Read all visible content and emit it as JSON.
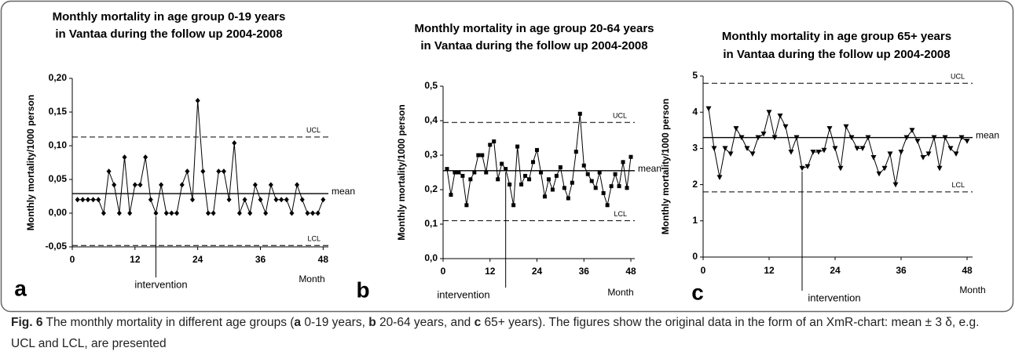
{
  "chart_data": [
    {
      "type": "line",
      "panel": "a",
      "title": [
        "Monthly mortality in age group 0-19 years",
        "in Vantaa during the follow up 2004-2008"
      ],
      "y_label": "Monthly mortality/1000 person",
      "x_label": "Month",
      "x": [
        1,
        2,
        3,
        4,
        5,
        6,
        7,
        8,
        9,
        10,
        11,
        12,
        13,
        14,
        15,
        16,
        17,
        18,
        19,
        20,
        21,
        22,
        23,
        24,
        25,
        26,
        27,
        28,
        29,
        30,
        31,
        32,
        33,
        34,
        35,
        36,
        37,
        38,
        39,
        40,
        41,
        42,
        43,
        44,
        45,
        46,
        47,
        48
      ],
      "values": [
        0.02,
        0.02,
        0.02,
        0.02,
        0.02,
        0,
        0.062,
        0.042,
        0,
        0.083,
        0,
        0.042,
        0.042,
        0.083,
        0.02,
        0,
        0.042,
        0,
        0,
        0,
        0.042,
        0.062,
        0.02,
        0.167,
        0.062,
        0,
        0,
        0.062,
        0.062,
        0.02,
        0.104,
        0,
        0.02,
        0,
        0.042,
        0.02,
        0,
        0.042,
        0.02,
        0.02,
        0.02,
        0,
        0.042,
        0.02,
        0,
        0,
        0,
        0.02
      ],
      "color": "#000000",
      "marker": "diamond",
      "xlim": [
        0,
        49
      ],
      "xticks": [
        0,
        12,
        24,
        36,
        48
      ],
      "ylim": [
        -0.05,
        0.2
      ],
      "yticks": [
        {
          "value": -0.05,
          "label": "-0,05"
        },
        {
          "value": 0,
          "label": "0,00"
        },
        {
          "value": 0.05,
          "label": "0,05"
        },
        {
          "value": 0.1,
          "label": "0,10"
        },
        {
          "value": 0.15,
          "label": "0,15"
        },
        {
          "value": 0.2,
          "label": "0,20"
        }
      ],
      "ref_lines": [
        {
          "label": "UCL",
          "value": 0.113,
          "style": "dashed"
        },
        {
          "label": "mean",
          "value": 0.029,
          "style": "solid"
        },
        {
          "label": "LCL",
          "value": -0.048,
          "style": "dashed"
        }
      ],
      "annotation": {
        "text": "intervention",
        "x": 16
      }
    },
    {
      "type": "line",
      "panel": "b",
      "title": [
        "Monthly mortality in age group 20-64 years",
        "in Vantaa during the follow up 2004-2008"
      ],
      "y_label": "Monthly mortality/1000 person",
      "x_label": "Month",
      "x": [
        1,
        2,
        3,
        4,
        5,
        6,
        7,
        8,
        9,
        10,
        11,
        12,
        13,
        14,
        15,
        16,
        17,
        18,
        19,
        20,
        21,
        22,
        23,
        24,
        25,
        26,
        27,
        28,
        29,
        30,
        31,
        32,
        33,
        34,
        35,
        36,
        37,
        38,
        39,
        40,
        41,
        42,
        43,
        44,
        45,
        46,
        47,
        48
      ],
      "values": [
        0.26,
        0.185,
        0.25,
        0.25,
        0.24,
        0.155,
        0.23,
        0.25,
        0.3,
        0.3,
        0.25,
        0.33,
        0.34,
        0.23,
        0.275,
        0.26,
        0.215,
        0.155,
        0.325,
        0.215,
        0.24,
        0.23,
        0.28,
        0.315,
        0.25,
        0.18,
        0.23,
        0.2,
        0.24,
        0.265,
        0.205,
        0.175,
        0.22,
        0.31,
        0.42,
        0.27,
        0.245,
        0.225,
        0.205,
        0.25,
        0.19,
        0.155,
        0.21,
        0.245,
        0.21,
        0.28,
        0.205,
        0.295
      ],
      "color": "#000000",
      "marker": "square",
      "xlim": [
        0,
        49
      ],
      "xticks": [
        0,
        12,
        24,
        36,
        48
      ],
      "ylim": [
        0,
        0.5
      ],
      "yticks": [
        {
          "value": 0,
          "label": "0,0"
        },
        {
          "value": 0.1,
          "label": "0,1"
        },
        {
          "value": 0.2,
          "label": "0,2"
        },
        {
          "value": 0.3,
          "label": "0,3"
        },
        {
          "value": 0.4,
          "label": "0,4"
        },
        {
          "value": 0.5,
          "label": "0,5"
        }
      ],
      "ref_lines": [
        {
          "label": "UCL",
          "value": 0.395,
          "style": "dashed"
        },
        {
          "label": "mean",
          "value": 0.255,
          "style": "solid"
        },
        {
          "label": "LCL",
          "value": 0.11,
          "style": "dashed"
        }
      ],
      "annotation": {
        "text": "intervention",
        "x": 16
      }
    },
    {
      "type": "line",
      "panel": "c",
      "title": [
        "Monthly mortality in age group 65+ years",
        "in Vantaa during the follow up 2004-2008"
      ],
      "y_label": "Monthly mortality/1000 person",
      "x_label": "Month",
      "x": [
        1,
        2,
        3,
        4,
        5,
        6,
        7,
        8,
        9,
        10,
        11,
        12,
        13,
        14,
        15,
        16,
        17,
        18,
        19,
        20,
        21,
        22,
        23,
        24,
        25,
        26,
        27,
        28,
        29,
        30,
        31,
        32,
        33,
        34,
        35,
        36,
        37,
        38,
        39,
        40,
        41,
        42,
        43,
        44,
        45,
        46,
        47,
        48
      ],
      "values": [
        4.1,
        3.0,
        2.2,
        3.0,
        2.85,
        3.55,
        3.3,
        3.0,
        2.85,
        3.3,
        3.4,
        4.0,
        3.3,
        3.9,
        3.6,
        2.9,
        3.3,
        2.45,
        2.5,
        2.9,
        2.9,
        2.95,
        3.55,
        3.0,
        2.45,
        3.6,
        3.3,
        3.0,
        3.0,
        3.3,
        2.75,
        2.3,
        2.45,
        2.85,
        2.0,
        2.9,
        3.3,
        3.5,
        3.2,
        2.75,
        2.85,
        3.3,
        2.45,
        3.3,
        3.0,
        2.85,
        3.3,
        3.2
      ],
      "color": "#000000",
      "marker": "triangle-down",
      "xlim": [
        0,
        49
      ],
      "xticks": [
        0,
        12,
        24,
        36,
        48
      ],
      "ylim": [
        0,
        5
      ],
      "yticks": [
        0,
        1,
        2,
        3,
        4,
        5
      ],
      "ref_lines": [
        {
          "label": "UCL",
          "value": 4.8,
          "style": "dashed"
        },
        {
          "label": "mean",
          "value": 3.3,
          "style": "solid"
        },
        {
          "label": "LCL",
          "value": 1.8,
          "style": "dashed"
        }
      ],
      "annotation": {
        "text": "intervention",
        "x": 18
      }
    }
  ],
  "caption": {
    "label": "Fig. 6",
    "parts": [
      "The monthly mortality in different age groups (",
      "a",
      " 0-19 years, ",
      "b",
      " 20-64 years, and ",
      "c",
      " 65+ years). The figures show the original data in the form of an XmR-chart: mean ± 3 δ, e.g. UCL and LCL, are presented"
    ]
  }
}
